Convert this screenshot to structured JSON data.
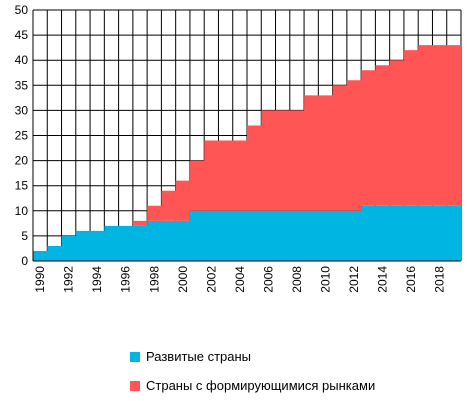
{
  "chart_data": {
    "type": "area",
    "stacked": true,
    "step": true,
    "x": [
      1990,
      1991,
      1992,
      1993,
      1994,
      1995,
      1996,
      1997,
      1998,
      1999,
      2000,
      2001,
      2002,
      2003,
      2004,
      2005,
      2006,
      2007,
      2008,
      2009,
      2010,
      2011,
      2012,
      2013,
      2014,
      2015,
      2016,
      2017,
      2018,
      2019
    ],
    "x_tick_labels": [
      "1990",
      "1992",
      "1994",
      "1996",
      "1998",
      "2000",
      "2002",
      "2004",
      "2006",
      "2008",
      "2010",
      "2012",
      "2014",
      "2016",
      "2018"
    ],
    "series": [
      {
        "name": "Развитые страны",
        "color": "#00b5e2",
        "values": [
          2,
          3,
          5,
          6,
          6,
          7,
          7,
          7,
          8,
          8,
          8,
          10,
          10,
          10,
          10,
          10,
          10,
          10,
          10,
          10,
          10,
          10,
          10,
          11,
          11,
          11,
          11,
          11,
          11,
          11
        ]
      },
      {
        "name": "Страны с формирующимися рынками",
        "color": "#ff5555",
        "values": [
          0,
          0,
          0,
          0,
          0,
          0,
          0,
          1,
          3,
          6,
          8,
          10,
          14,
          14,
          14,
          17,
          20,
          20,
          20,
          23,
          23,
          25,
          26,
          27,
          28,
          29,
          31,
          32,
          32,
          32
        ]
      }
    ],
    "y_ticks": [
      0,
      5,
      10,
      15,
      20,
      25,
      30,
      35,
      40,
      45,
      50
    ],
    "ylim": [
      0,
      50
    ],
    "grid": true,
    "legend_position": "bottom",
    "title": "",
    "xlabel": "",
    "ylabel": ""
  },
  "legend": {
    "developed_label": "Развитые страны",
    "emerging_label": "Страны с формирующимися рынками"
  }
}
